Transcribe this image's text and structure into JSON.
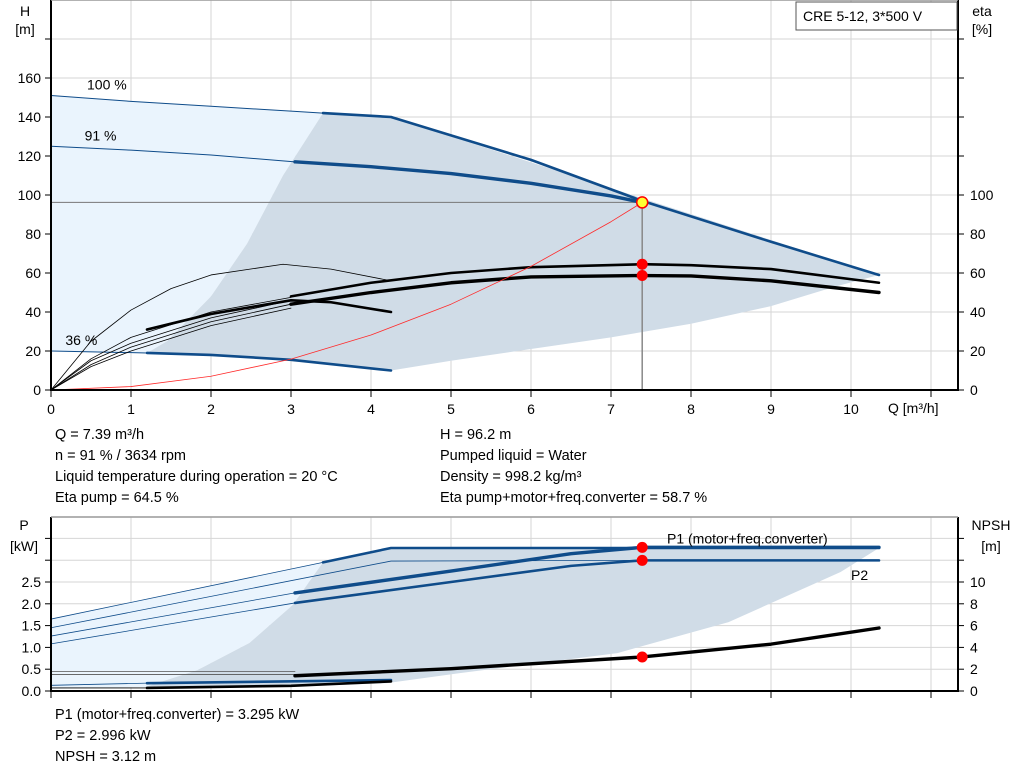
{
  "legend_box": {
    "label": "CRE 5-12, 3*500 V"
  },
  "top_info": {
    "left": [
      "Q = 7.39 m³/h",
      "n = 91 % / 3634 rpm",
      "Liquid temperature during operation = 20 °C",
      "Eta pump = 64.5 %"
    ],
    "right": [
      "H = 96.2 m",
      "Pumped liquid = Water",
      "Density = 998.2 kg/m³",
      "Eta pump+motor+freq.converter = 58.7 %"
    ]
  },
  "bottom_info": [
    "P1 (motor+freq.converter) = 3.295 kW",
    "P2 = 2.996 kW",
    "NPSH = 3.12 m"
  ],
  "colors": {
    "curve": "#0f4c8a",
    "region_gray": "#d0dce7",
    "region_light": "#eaf4fd",
    "system": "#ff2a2a",
    "point": "#ff0000",
    "duty_point": "#ffff33",
    "eta": "#000000"
  },
  "chart_data": [
    {
      "type": "line",
      "xlabel": "Q [m³/h]",
      "ylabel_left": [
        "H",
        "[m]"
      ],
      "ylabel_right": [
        "eta",
        "[%]"
      ],
      "xlim": [
        0,
        11.3
      ],
      "ylim_left": [
        0,
        200
      ],
      "ylim_right": [
        0,
        200
      ],
      "xticks": [
        "0",
        "1",
        "2",
        "3",
        "4",
        "5",
        "6",
        "7",
        "8",
        "9",
        "10"
      ],
      "yticks_left": [
        "0",
        "20",
        "40",
        "60",
        "80",
        "100",
        "120",
        "140",
        "160"
      ],
      "yticks_right": [
        "0",
        "20",
        "40",
        "60",
        "80",
        "100"
      ],
      "grid": true,
      "speed_labels": [
        {
          "text": "100 %",
          "x": 0.45,
          "y": 154
        },
        {
          "text": "91 %",
          "x": 0.42,
          "y": 128
        },
        {
          "text": "36 %",
          "x": 0.18,
          "y": 23
        }
      ],
      "regions": [
        {
          "name": "light",
          "color": "#eaf4fd",
          "points": [
            [
              0,
              151
            ],
            [
              3.4,
              142
            ],
            [
              2.9,
              110
            ],
            [
              2.45,
              75
            ],
            [
              2.0,
              48
            ],
            [
              1.45,
              25
            ],
            [
              1.2,
              19
            ],
            [
              0,
              20
            ]
          ]
        },
        {
          "name": "gray",
          "color": "#d0dce7",
          "points": [
            [
              3.4,
              142
            ],
            [
              4.25,
              140
            ],
            [
              10.35,
              59
            ],
            [
              9.8,
              53
            ],
            [
              9,
              43
            ],
            [
              8,
              34
            ],
            [
              7,
              27
            ],
            [
              6,
              21
            ],
            [
              5,
              15
            ],
            [
              4.25,
              10
            ],
            [
              3,
              15.5
            ],
            [
              2,
              18
            ],
            [
              1.2,
              19
            ],
            [
              1.45,
              25
            ],
            [
              2.0,
              48
            ],
            [
              2.45,
              75
            ],
            [
              2.9,
              110
            ]
          ]
        }
      ],
      "series": [
        {
          "name": "100 %",
          "axis": "H",
          "weight": "thin",
          "color": "#0f4c8a",
          "points": [
            [
              0,
              151
            ],
            [
              1,
              148
            ],
            [
              2,
              145.5
            ],
            [
              3,
              143
            ],
            [
              3.4,
              142
            ]
          ]
        },
        {
          "name": "100 %",
          "axis": "H",
          "weight": "thick",
          "color": "#0f4c8a",
          "points": [
            [
              3.4,
              142
            ],
            [
              4.25,
              140
            ],
            [
              6,
              118
            ],
            [
              7.39,
              97
            ],
            [
              9,
              76
            ],
            [
              10.35,
              59
            ]
          ]
        },
        {
          "name": "91 %",
          "axis": "H",
          "weight": "thin",
          "color": "#0f4c8a",
          "points": [
            [
              0,
              125
            ],
            [
              1,
              123
            ],
            [
              2,
              120.5
            ],
            [
              3.05,
              117
            ]
          ]
        },
        {
          "name": "91 %",
          "axis": "H",
          "weight": "heavy",
          "color": "#0f4c8a",
          "points": [
            [
              3.05,
              117
            ],
            [
              4,
              114.5
            ],
            [
              5,
              111
            ],
            [
              6,
              106
            ],
            [
              7,
              99.5
            ],
            [
              7.39,
              96.2
            ]
          ]
        },
        {
          "name": "36 %",
          "axis": "H",
          "weight": "thin",
          "color": "#0f4c8a",
          "points": [
            [
              0,
              20
            ],
            [
              1.2,
              19
            ]
          ]
        },
        {
          "name": "36 %",
          "axis": "H",
          "weight": "thick",
          "color": "#0f4c8a",
          "points": [
            [
              1.2,
              19
            ],
            [
              2,
              18
            ],
            [
              3,
              15.5
            ],
            [
              4.25,
              10
            ]
          ]
        },
        {
          "axis": "eta",
          "weight": "hair",
          "color": "#000000",
          "points": [
            [
              0,
              0
            ],
            [
              0.5,
              25
            ],
            [
              1,
              41
            ],
            [
              1.5,
              52
            ],
            [
              2,
              59
            ],
            [
              2.9,
              64.5
            ],
            [
              3.5,
              62
            ],
            [
              4.25,
              56
            ]
          ]
        },
        {
          "axis": "eta",
          "weight": "hair",
          "color": "#000000",
          "points": [
            [
              0,
              0
            ],
            [
              0.5,
              12
            ],
            [
              1,
              20
            ],
            [
              2,
              33
            ],
            [
              3,
              42
            ]
          ]
        },
        {
          "axis": "eta",
          "weight": "hair",
          "color": "#000000",
          "points": [
            [
              0,
              0
            ],
            [
              0.5,
              13
            ],
            [
              1,
              22
            ],
            [
              2,
              35
            ],
            [
              3,
              44
            ]
          ]
        },
        {
          "axis": "eta",
          "weight": "hair",
          "color": "#000000",
          "points": [
            [
              0,
              0
            ],
            [
              0.5,
              15
            ],
            [
              1,
              24
            ],
            [
              2,
              37
            ],
            [
              3,
              46
            ]
          ]
        },
        {
          "axis": "eta",
          "weight": "hair",
          "color": "#000000",
          "points": [
            [
              0,
              0
            ],
            [
              0.5,
              16
            ],
            [
              1,
              27
            ],
            [
              2,
              40
            ],
            [
              3,
              47.5
            ]
          ]
        },
        {
          "axis": "eta",
          "weight": "thick",
          "color": "#000000",
          "points": [
            [
              1.2,
              31
            ],
            [
              2,
              39
            ],
            [
              3,
              46
            ],
            [
              3.5,
              45
            ],
            [
              4.25,
              40
            ]
          ]
        },
        {
          "name": "Eta pump",
          "axis": "eta",
          "weight": "thick",
          "color": "#000000",
          "points": [
            [
              3,
              48
            ],
            [
              4,
              55
            ],
            [
              5,
              60
            ],
            [
              6,
              63
            ],
            [
              7.39,
              64.5
            ],
            [
              8,
              64
            ],
            [
              9,
              62
            ],
            [
              10.35,
              55
            ]
          ]
        },
        {
          "name": "Eta pump+motor+freq.converter",
          "axis": "eta",
          "weight": "heavy",
          "color": "#000000",
          "points": [
            [
              3,
              44
            ],
            [
              4,
              50
            ],
            [
              5,
              55
            ],
            [
              6,
              58
            ],
            [
              7.39,
              58.7
            ],
            [
              8,
              58.5
            ],
            [
              9,
              56
            ],
            [
              10.35,
              50
            ]
          ]
        },
        {
          "name": "system",
          "axis": "H",
          "weight": "hair",
          "color": "#ff2a2a",
          "points": [
            [
              0,
              0
            ],
            [
              1,
              1.76
            ],
            [
              2,
              7.05
            ],
            [
              3,
              15.85
            ],
            [
              4,
              28.2
            ],
            [
              5,
              44.0
            ],
            [
              6,
              63.4
            ],
            [
              7,
              86.3
            ],
            [
              7.39,
              96.2
            ]
          ]
        }
      ],
      "duty_lines": {
        "q": 7.39,
        "h": 96.2
      },
      "points": [
        {
          "name": "duty-point",
          "axis": "H",
          "x": 7.39,
          "y": 96.2,
          "color": "#ffff33"
        },
        {
          "name": "eta-pump-point",
          "axis": "eta",
          "x": 7.39,
          "y": 64.5,
          "color": "#ff0000"
        },
        {
          "name": "eta-total-point",
          "axis": "eta",
          "x": 7.39,
          "y": 58.7,
          "color": "#ff0000"
        }
      ]
    },
    {
      "type": "line",
      "ylabel_left": [
        "P",
        "[kW]"
      ],
      "ylabel_right": [
        "NPSH",
        "[m]"
      ],
      "xlim": [
        0,
        11.3
      ],
      "ylim_left": [
        0,
        3.95
      ],
      "ylim_right": [
        0,
        15.8
      ],
      "yticks_left": [
        "0.0",
        "0.5",
        "1.0",
        "1.5",
        "2.0",
        "2.5"
      ],
      "yticks_right": [
        "0",
        "2",
        "4",
        "6",
        "8",
        "10"
      ],
      "grid": true,
      "series_labels": [
        {
          "text": "P1 (motor+freq.converter)",
          "x": 7.7,
          "y": 3.38
        },
        {
          "text": "P2",
          "x": 10.0,
          "y": 2.55
        }
      ],
      "regions": [
        {
          "name": "light",
          "color": "#eaf4fd",
          "points": [
            [
              0,
              1.65
            ],
            [
              3.4,
              2.95
            ],
            [
              3.02,
              1.97
            ],
            [
              2.48,
              1.1
            ],
            [
              1.83,
              0.48
            ],
            [
              1.17,
              0.09
            ],
            [
              0,
              0.05
            ]
          ]
        },
        {
          "name": "gray",
          "color": "#d0dce7",
          "points": [
            [
              3.4,
              2.95
            ],
            [
              4.25,
              3.28
            ],
            [
              10.35,
              3.28
            ],
            [
              9.87,
              2.73
            ],
            [
              8.47,
              1.58
            ],
            [
              7.08,
              0.87
            ],
            [
              5.11,
              0.41
            ],
            [
              4.2,
              0.18
            ],
            [
              3,
              0.1
            ],
            [
              1.17,
              0.09
            ],
            [
              1.83,
              0.48
            ],
            [
              2.48,
              1.1
            ],
            [
              3.02,
              1.97
            ]
          ]
        }
      ],
      "series": [
        {
          "axis": "P",
          "weight": "hair",
          "color": "#0f4c8a",
          "points": [
            [
              0,
              1.65
            ],
            [
              3.4,
              2.95
            ]
          ]
        },
        {
          "axis": "P",
          "weight": "thick",
          "color": "#0f4c8a",
          "points": [
            [
              3.4,
              2.95
            ],
            [
              4.25,
              3.28
            ],
            [
              10.35,
              3.28
            ]
          ]
        },
        {
          "axis": "P",
          "weight": "hair",
          "color": "#0f4c8a",
          "points": [
            [
              0,
              1.45
            ],
            [
              4.25,
              2.98
            ],
            [
              7.39,
              2.996
            ]
          ]
        },
        {
          "axis": "P",
          "weight": "hair",
          "color": "#0f4c8a",
          "points": [
            [
              0,
              1.26
            ],
            [
              3.05,
              2.25
            ]
          ]
        },
        {
          "name": "P1 (motor+freq.converter)",
          "axis": "P",
          "weight": "heavy",
          "color": "#0f4c8a",
          "points": [
            [
              3.05,
              2.25
            ],
            [
              5,
              2.75
            ],
            [
              6.5,
              3.15
            ],
            [
              7.39,
              3.295
            ],
            [
              10.35,
              3.295
            ]
          ]
        },
        {
          "axis": "P",
          "weight": "hair",
          "color": "#0f4c8a",
          "points": [
            [
              0,
              1.08
            ],
            [
              3.05,
              2.02
            ]
          ]
        },
        {
          "name": "P2",
          "axis": "P",
          "weight": "thick",
          "color": "#0f4c8a",
          "points": [
            [
              3.05,
              2.02
            ],
            [
              5,
              2.5
            ],
            [
              6.5,
              2.87
            ],
            [
              7.39,
              2.996
            ],
            [
              10.35,
              2.996
            ]
          ]
        },
        {
          "axis": "P",
          "weight": "hair",
          "color": "#555555",
          "points": [
            [
              0,
              0.45
            ],
            [
              3.05,
              0.45
            ]
          ]
        },
        {
          "axis": "P",
          "weight": "hair",
          "color": "#555555",
          "points": [
            [
              0,
              0.38
            ],
            [
              3.05,
              0.38
            ]
          ]
        },
        {
          "axis": "P",
          "weight": "hair",
          "color": "#0f4c8a",
          "points": [
            [
              0,
              0.13
            ],
            [
              1.2,
              0.18
            ]
          ]
        },
        {
          "axis": "P",
          "weight": "thick",
          "color": "#0f4c8a",
          "points": [
            [
              1.2,
              0.18
            ],
            [
              4.25,
              0.25
            ]
          ]
        },
        {
          "axis": "P",
          "weight": "hair",
          "color": "#000000",
          "points": [
            [
              0,
              0.07
            ],
            [
              1.2,
              0.07
            ]
          ]
        },
        {
          "axis": "P",
          "weight": "thick",
          "color": "#000000",
          "points": [
            [
              1.2,
              0.07
            ],
            [
              3,
              0.12
            ],
            [
              4.25,
              0.22
            ]
          ]
        },
        {
          "name": "NPSH",
          "axis": "NPSH",
          "weight": "heavy",
          "color": "#000000",
          "points": [
            [
              3.05,
              1.4
            ],
            [
              5,
              2.05
            ],
            [
              7.39,
              3.12
            ],
            [
              9,
              4.3
            ],
            [
              10.35,
              5.78
            ]
          ]
        }
      ],
      "points": [
        {
          "name": "p1-point",
          "axis": "P",
          "x": 7.39,
          "y": 3.295,
          "color": "#ff0000"
        },
        {
          "name": "p2-point",
          "axis": "P",
          "x": 7.39,
          "y": 2.996,
          "color": "#ff0000"
        },
        {
          "name": "npsh-point",
          "axis": "NPSH",
          "x": 7.39,
          "y": 3.12,
          "color": "#ff0000"
        }
      ]
    }
  ]
}
